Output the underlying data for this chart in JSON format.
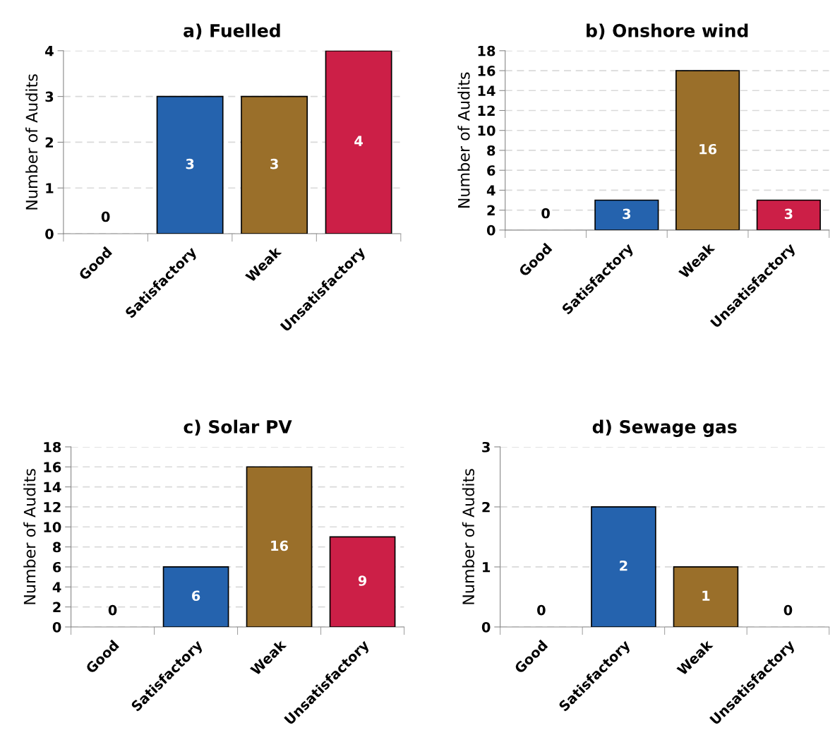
{
  "chart_data": [
    {
      "type": "bar",
      "title": "a) Fuelled",
      "ylabel": "Number of Audits",
      "categories": [
        "Good",
        "Satisfactory",
        "Weak",
        "Unsatisfactory"
      ],
      "values": [
        0,
        3,
        3,
        4
      ],
      "colors": [
        "#2563ae",
        "#2563ae",
        "#9a6f2a",
        "#cc1f47"
      ],
      "ylim": [
        0,
        4
      ],
      "yticks": [
        0,
        1,
        2,
        3,
        4
      ],
      "grid": "y",
      "data_labels": true
    },
    {
      "type": "bar",
      "title": "b) Onshore wind",
      "ylabel": "Number of Audits",
      "categories": [
        "Good",
        "Satisfactory",
        "Weak",
        "Unsatisfactory"
      ],
      "values": [
        0,
        3,
        16,
        3
      ],
      "colors": [
        "#2563ae",
        "#2563ae",
        "#9a6f2a",
        "#cc1f47"
      ],
      "ylim": [
        0,
        18
      ],
      "yticks": [
        0,
        2,
        4,
        6,
        8,
        10,
        12,
        14,
        16,
        18
      ],
      "grid": "y",
      "data_labels": true
    },
    {
      "type": "bar",
      "title": "c) Solar PV",
      "ylabel": "Number of Audits",
      "categories": [
        "Good",
        "Satisfactory",
        "Weak",
        "Unsatisfactory"
      ],
      "values": [
        0,
        6,
        16,
        9
      ],
      "colors": [
        "#2563ae",
        "#2563ae",
        "#9a6f2a",
        "#cc1f47"
      ],
      "ylim": [
        0,
        18
      ],
      "yticks": [
        0,
        2,
        4,
        6,
        8,
        10,
        12,
        14,
        16,
        18
      ],
      "grid": "y",
      "data_labels": true
    },
    {
      "type": "bar",
      "title": "d) Sewage gas",
      "ylabel": "Number of Audits",
      "categories": [
        "Good",
        "Satisfactory",
        "Weak",
        "Unsatisfactory"
      ],
      "values": [
        0,
        2,
        1,
        0
      ],
      "colors": [
        "#2563ae",
        "#2563ae",
        "#9a6f2a",
        "#cc1f47"
      ],
      "ylim": [
        0,
        3
      ],
      "yticks": [
        0,
        1,
        2,
        3
      ],
      "grid": "y",
      "data_labels": true
    }
  ]
}
